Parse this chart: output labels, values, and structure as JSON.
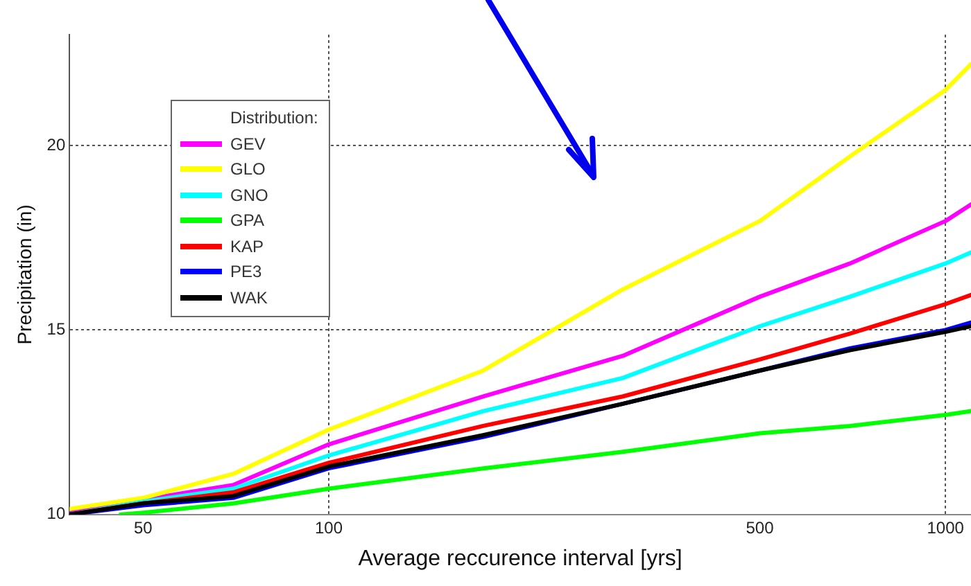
{
  "chart_data": {
    "type": "line",
    "xlabel": "Average reccurence interval [yrs]",
    "ylabel": "Precipitation (in)",
    "legend_title": "Distribution:",
    "log": "x",
    "xlim": [
      38,
      1100
    ],
    "xticks": [
      50,
      100,
      500,
      1000
    ],
    "ylim": [
      10,
      23
    ],
    "yticks": [
      10,
      15,
      20
    ],
    "grid": true,
    "legend": "top left",
    "marker": "none",
    "line_style": "solid",
    "x": [
      38,
      50,
      70,
      100,
      178,
      300,
      500,
      700,
      1000,
      1100
    ],
    "series": [
      {
        "name": "GEV",
        "color": "#ff00ff",
        "values": [
          10.05,
          10.4,
          10.8,
          11.9,
          13.2,
          14.3,
          15.9,
          16.8,
          17.95,
          18.4
        ]
      },
      {
        "name": "GLO",
        "color": "#ffff00",
        "values": [
          10.15,
          10.45,
          11.1,
          12.3,
          13.9,
          16.1,
          17.95,
          19.7,
          21.5,
          22.2
        ]
      },
      {
        "name": "GNO",
        "color": "#00ffff",
        "values": [
          10.0,
          10.35,
          10.7,
          11.6,
          12.8,
          13.7,
          15.1,
          15.9,
          16.8,
          17.1
        ]
      },
      {
        "name": "GPA",
        "color": "#00ff00",
        "x": [
          46,
          50,
          70,
          100,
          178,
          300,
          500,
          700,
          1000,
          1100
        ],
        "values": [
          10.0,
          10.05,
          10.3,
          10.7,
          11.25,
          11.7,
          12.2,
          12.4,
          12.7,
          12.8
        ]
      },
      {
        "name": "KAP",
        "color": "#ff0000",
        "values": [
          10.0,
          10.3,
          10.6,
          11.4,
          12.4,
          13.2,
          14.2,
          14.9,
          15.7,
          15.95
        ]
      },
      {
        "name": "PE3",
        "color": "#0000ff",
        "values": [
          10.0,
          10.25,
          10.45,
          11.25,
          12.1,
          13.0,
          13.9,
          14.5,
          15.0,
          15.2
        ]
      },
      {
        "name": "WAK",
        "color": "#000000",
        "values": [
          10.0,
          10.3,
          10.5,
          11.3,
          12.15,
          13.0,
          13.9,
          14.45,
          14.95,
          15.1
        ]
      }
    ]
  }
}
